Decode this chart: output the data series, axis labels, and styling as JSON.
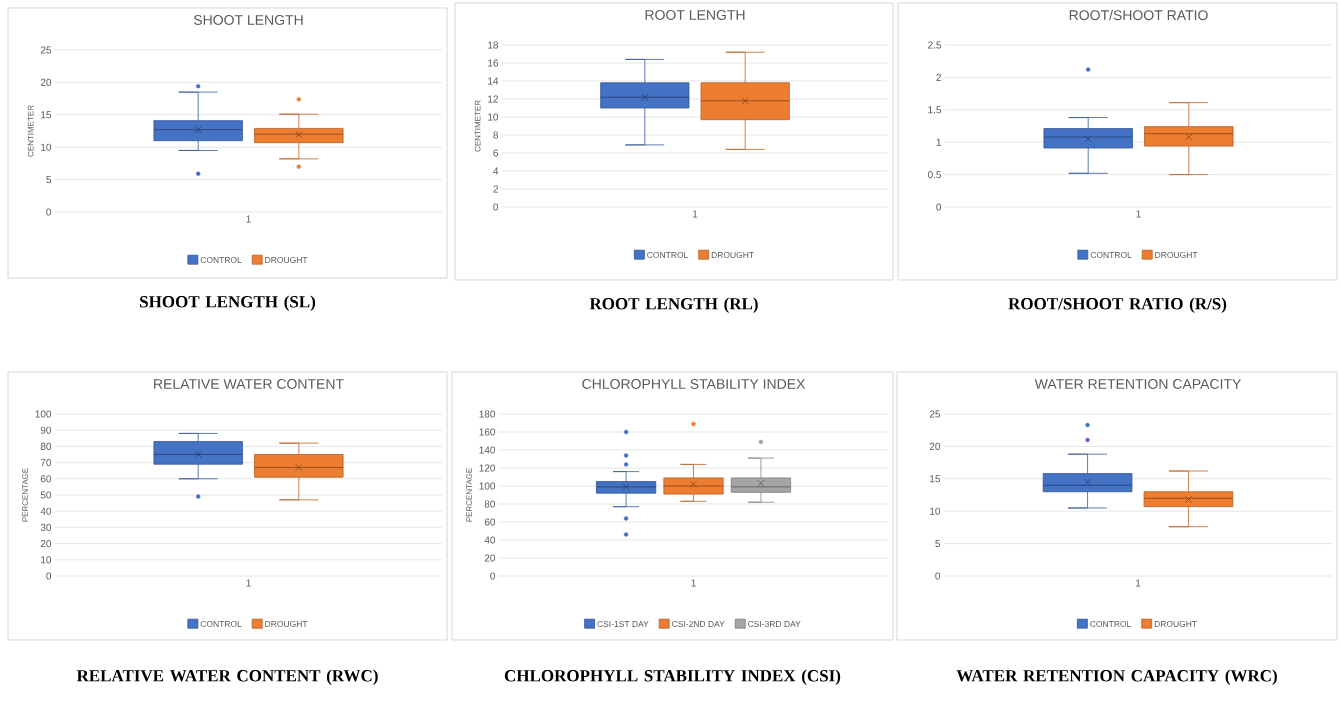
{
  "chart_data": [
    {
      "type": "box",
      "title": "SHOOT LENGTH",
      "ylabel": "CENTIMETER",
      "categories": [
        "1"
      ],
      "ylim": [
        0,
        25
      ],
      "yticks": [
        0,
        5,
        10,
        15,
        20,
        25
      ],
      "grid": "y",
      "legend": "bottom",
      "annotations": [
        "SHOOT  LENGTH (SL)"
      ],
      "series": [
        {
          "name": "CONTROL",
          "color": "#4472c4",
          "boxes": [
            {
              "low": 9.5,
              "q1": 11,
              "median": 12.7,
              "q3": 14.1,
              "high": 18.5,
              "mean": 12.7,
              "outliers": [
                19.4,
                5.9
              ]
            }
          ]
        },
        {
          "name": "DROUGHT",
          "color": "#ed7d31",
          "boxes": [
            {
              "low": 8.2,
              "q1": 10.7,
              "median": 12,
              "q3": 12.9,
              "high": 15.1,
              "mean": 11.9,
              "outliers": [
                17.4,
                7.0
              ]
            }
          ]
        }
      ]
    },
    {
      "type": "box",
      "title": "ROOT LENGTH",
      "ylabel": "CENTIMETER",
      "categories": [
        "1"
      ],
      "ylim": [
        0,
        18
      ],
      "yticks": [
        0,
        2,
        4,
        6,
        8,
        10,
        12,
        14,
        16,
        18
      ],
      "grid": "y",
      "legend": "bottom",
      "annotations": [
        "ROOT LENGTH (RL)"
      ],
      "series": [
        {
          "name": "CONTROL",
          "color": "#4472c4",
          "boxes": [
            {
              "low": 6.9,
              "q1": 11,
              "median": 12.2,
              "q3": 13.8,
              "high": 16.4,
              "mean": 12.2
            }
          ]
        },
        {
          "name": "DROUGHT",
          "color": "#ed7d31",
          "boxes": [
            {
              "low": 6.4,
              "q1": 9.7,
              "median": 11.8,
              "q3": 13.8,
              "high": 17.2,
              "mean": 11.8
            }
          ]
        }
      ]
    },
    {
      "type": "box",
      "title": "ROOT/SHOOT RATIO",
      "categories": [
        "1"
      ],
      "ylim": [
        0,
        2.5
      ],
      "yticks": [
        0,
        0.5,
        1,
        1.5,
        2,
        2.5
      ],
      "grid": "y",
      "legend": "bottom",
      "annotations": [
        "ROOT/SHOOT  RATIO (R/S)"
      ],
      "series": [
        {
          "name": "CONTROL",
          "color": "#4472c4",
          "boxes": [
            {
              "low": 0.52,
              "q1": 0.91,
              "median": 1.08,
              "q3": 1.21,
              "high": 1.38,
              "mean": 1.05,
              "outliers": [
                2.12
              ]
            }
          ]
        },
        {
          "name": "DROUGHT",
          "color": "#ed7d31",
          "boxes": [
            {
              "low": 0.5,
              "q1": 0.94,
              "median": 1.13,
              "q3": 1.24,
              "high": 1.61,
              "mean": 1.08
            }
          ]
        }
      ]
    },
    {
      "type": "box",
      "title": "RELATIVE WATER CONTENT",
      "ylabel": "PERCENTAGE",
      "categories": [
        "1"
      ],
      "ylim": [
        0,
        100
      ],
      "yticks": [
        0,
        10,
        20,
        30,
        40,
        50,
        60,
        70,
        80,
        90,
        100
      ],
      "grid": "y",
      "legend": "bottom",
      "annotations": [
        "RELATIVE WATER CONTENT (RWC)"
      ],
      "series": [
        {
          "name": "CONTROL",
          "color": "#4472c4",
          "boxes": [
            {
              "low": 60,
              "q1": 69,
              "median": 75,
              "q3": 83,
              "high": 88,
              "mean": 75,
              "outliers": [
                49
              ]
            }
          ]
        },
        {
          "name": "DROUGHT",
          "color": "#ed7d31",
          "boxes": [
            {
              "low": 47,
              "q1": 61,
              "median": 67,
              "q3": 75,
              "high": 82,
              "mean": 67
            }
          ]
        }
      ]
    },
    {
      "type": "box",
      "title": "CHLOROPHYLL STABILITY INDEX",
      "ylabel": "PERCENTAGE",
      "categories": [
        "1"
      ],
      "ylim": [
        0,
        180
      ],
      "yticks": [
        0,
        20,
        40,
        60,
        80,
        100,
        120,
        140,
        160,
        180
      ],
      "grid": "y",
      "legend": "bottom",
      "annotations": [
        "CHLOROPHYLL  STABILITY INDEX (CSI)"
      ],
      "series": [
        {
          "name": "CSI-1ST DAY",
          "color": "#4472c4",
          "boxes": [
            {
              "low": 77,
              "q1": 92,
              "median": 99,
              "q3": 105,
              "high": 116,
              "mean": 99,
              "outliers": [
                160,
                134,
                124,
                64,
                46
              ]
            }
          ]
        },
        {
          "name": "CSI-2ND DAY",
          "color": "#ed7d31",
          "boxes": [
            {
              "low": 83,
              "q1": 91,
              "median": 100,
              "q3": 109,
              "high": 124,
              "mean": 102,
              "outliers": [
                169
              ]
            }
          ]
        },
        {
          "name": "CSI-3RD DAY",
          "color": "#a5a5a5",
          "boxes": [
            {
              "low": 82,
              "q1": 93,
              "median": 99,
              "q3": 109,
              "high": 131,
              "mean": 103,
              "outliers": [
                149
              ]
            }
          ]
        }
      ]
    },
    {
      "type": "box",
      "title": "WATER RETENTION CAPACITY",
      "categories": [
        "1"
      ],
      "ylim": [
        0,
        25
      ],
      "yticks": [
        0,
        5,
        10,
        15,
        20,
        25
      ],
      "grid": "y",
      "legend": "bottom",
      "annotations": [
        "WATER RETENTION CAPACITY (WRC)"
      ],
      "series": [
        {
          "name": "CONTROL",
          "color": "#4472c4",
          "boxes": [
            {
              "low": 10.5,
              "q1": 13,
              "median": 14,
              "q3": 15.8,
              "high": 18.8,
              "mean": 14.5,
              "outliers": [
                23.3,
                21
              ]
            }
          ]
        },
        {
          "name": "DROUGHT",
          "color": "#ed7d31",
          "boxes": [
            {
              "low": 7.6,
              "q1": 10.7,
              "median": 12,
              "q3": 13,
              "high": 16.2,
              "mean": 11.8
            }
          ]
        }
      ]
    }
  ]
}
